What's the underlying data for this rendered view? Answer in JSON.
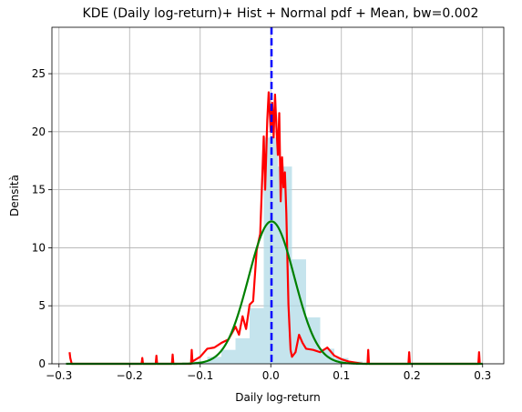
{
  "chart_data": {
    "type": "line",
    "title": "KDE (Daily log-return)+ Hist + Normal pdf + Mean, bw=0.002",
    "xlabel": "Daily log-return",
    "ylabel": "Densità",
    "xlim": [
      -0.31,
      0.33
    ],
    "ylim": [
      0,
      29
    ],
    "xticks": [
      -0.3,
      -0.2,
      -0.1,
      0.0,
      0.1,
      0.2,
      0.3
    ],
    "xtick_labels": [
      "−0.3",
      "−0.2",
      "−0.1",
      "0.0",
      "0.1",
      "0.2",
      "0.3"
    ],
    "yticks": [
      0,
      5,
      10,
      15,
      20,
      25
    ],
    "ytick_labels": [
      "0",
      "5",
      "10",
      "15",
      "20",
      "25"
    ],
    "grid": true,
    "mean": 0.001,
    "colors": {
      "kde": "#ff0000",
      "normal": "#008000",
      "mean": "#0000ff",
      "hist": "#add8e6",
      "grid": "#b0b0b0"
    },
    "histogram": {
      "bin_edges": [
        -0.11,
        -0.09,
        -0.07,
        -0.05,
        -0.03,
        -0.01,
        0.01,
        0.03,
        0.05,
        0.07,
        0.09,
        0.11,
        0.13
      ],
      "heights": [
        0.2,
        0.6,
        1.2,
        2.2,
        4.8,
        19.5,
        17.0,
        9.0,
        4.0,
        1.3,
        0.5,
        0.2
      ]
    },
    "normal_pdf": {
      "mu": 0.001,
      "sigma": 0.0325
    },
    "kde": {
      "x": [
        -0.285,
        -0.284,
        -0.282,
        -0.28,
        -0.25,
        -0.2,
        -0.183,
        -0.182,
        -0.181,
        -0.17,
        -0.163,
        -0.162,
        -0.161,
        -0.15,
        -0.14,
        -0.139,
        -0.138,
        -0.12,
        -0.113,
        -0.112,
        -0.111,
        -0.1,
        -0.09,
        -0.08,
        -0.07,
        -0.06,
        -0.05,
        -0.045,
        -0.04,
        -0.035,
        -0.03,
        -0.025,
        -0.02,
        -0.015,
        -0.01,
        -0.008,
        -0.005,
        -0.003,
        0.0,
        0.002,
        0.004,
        0.006,
        0.008,
        0.01,
        0.012,
        0.014,
        0.016,
        0.018,
        0.02,
        0.022,
        0.025,
        0.028,
        0.03,
        0.035,
        0.04,
        0.045,
        0.05,
        0.06,
        0.07,
        0.08,
        0.09,
        0.1,
        0.11,
        0.12,
        0.13,
        0.137,
        0.138,
        0.139,
        0.15,
        0.195,
        0.196,
        0.197,
        0.25,
        0.294,
        0.295,
        0.296
      ],
      "y": [
        1.0,
        0.5,
        0.0,
        0.0,
        0.0,
        0.0,
        0.0,
        0.5,
        0.0,
        0.0,
        0.0,
        0.7,
        0.0,
        0.0,
        0.0,
        0.8,
        0.0,
        0.0,
        0.0,
        1.2,
        0.2,
        0.6,
        1.3,
        1.4,
        1.8,
        2.1,
        3.2,
        2.5,
        4.1,
        3.0,
        5.1,
        5.4,
        9.8,
        11.2,
        19.6,
        15.0,
        21.0,
        23.4,
        20.0,
        22.5,
        19.5,
        23.2,
        20.4,
        18.0,
        21.6,
        14.0,
        17.8,
        15.2,
        16.5,
        13.0,
        5.1,
        1.2,
        0.6,
        1.0,
        2.5,
        1.8,
        1.3,
        1.2,
        1.0,
        1.4,
        0.7,
        0.4,
        0.2,
        0.1,
        0.0,
        0.0,
        1.2,
        0.0,
        0.0,
        0.0,
        1.0,
        0.0,
        0.0,
        0.0,
        1.0,
        0.0
      ]
    }
  }
}
